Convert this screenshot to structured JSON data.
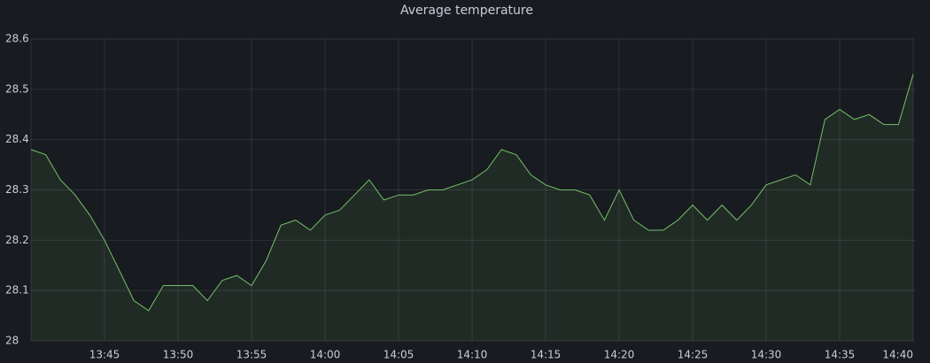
{
  "chart_data": {
    "type": "line",
    "title": "Average temperature",
    "x": [
      "13:40",
      "13:41",
      "13:42",
      "13:43",
      "13:44",
      "13:45",
      "13:46",
      "13:47",
      "13:48",
      "13:49",
      "13:50",
      "13:51",
      "13:52",
      "13:53",
      "13:54",
      "13:55",
      "13:56",
      "13:57",
      "13:58",
      "13:59",
      "14:00",
      "14:01",
      "14:02",
      "14:03",
      "14:04",
      "14:05",
      "14:06",
      "14:07",
      "14:08",
      "14:09",
      "14:10",
      "14:11",
      "14:12",
      "14:13",
      "14:14",
      "14:15",
      "14:16",
      "14:17",
      "14:18",
      "14:19",
      "14:20",
      "14:21",
      "14:22",
      "14:23",
      "14:24",
      "14:25",
      "14:26",
      "14:27",
      "14:28",
      "14:29",
      "14:30",
      "14:31",
      "14:32",
      "14:33",
      "14:34",
      "14:35",
      "14:36",
      "14:37",
      "14:38",
      "14:39",
      "14:40"
    ],
    "series": [
      {
        "name": "Average temperature",
        "color": "#73bf69",
        "values": [
          28.38,
          28.37,
          28.32,
          28.29,
          28.25,
          28.2,
          28.14,
          28.08,
          28.06,
          28.11,
          28.11,
          28.11,
          28.08,
          28.12,
          28.13,
          28.11,
          28.16,
          28.23,
          28.24,
          28.22,
          28.25,
          28.26,
          28.29,
          28.32,
          28.28,
          28.29,
          28.29,
          28.3,
          28.3,
          28.31,
          28.32,
          28.34,
          28.38,
          28.37,
          28.33,
          28.31,
          28.3,
          28.3,
          28.29,
          28.24,
          28.3,
          28.24,
          28.22,
          28.22,
          28.24,
          28.27,
          28.24,
          28.27,
          28.24,
          28.27,
          28.31,
          28.32,
          28.33,
          28.31,
          28.44,
          28.46,
          28.44,
          28.45,
          28.43,
          28.43,
          28.53
        ]
      }
    ],
    "xlim": [
      "13:40",
      "14:40"
    ],
    "xticks": [
      "13:45",
      "13:50",
      "13:55",
      "14:00",
      "14:05",
      "14:10",
      "14:15",
      "14:20",
      "14:25",
      "14:30",
      "14:35",
      "14:40"
    ],
    "ylim": [
      28,
      28.6
    ],
    "yticks": [
      28,
      28.1,
      28.2,
      28.3,
      28.4,
      28.5,
      28.6
    ],
    "grid": true
  }
}
